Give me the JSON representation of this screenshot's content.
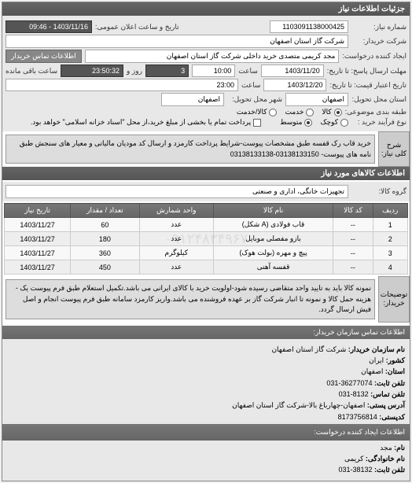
{
  "header": {
    "title": "جزئیات اطلاعات نیاز"
  },
  "form": {
    "req_no_label": "شماره نیاز:",
    "req_no": "1103091138000425",
    "ann_label": "تاریخ و ساعت اعلان عمومی:",
    "ann_date": "1403/11/16 - 09:46",
    "buyer_co_label": "شرکت خریدار:",
    "buyer_co": "شرکت گاز استان اصفهان",
    "creator_label": "ایجاد کننده درخواست:",
    "creator": "مجد کریمی متصدی خرید داخلی شرکت گاز استان اصفهان",
    "contact_btn": "اطلاعات تماس خریدار",
    "deadline_label": "مهلت ارسال پاسخ: تا تاریخ:",
    "deadline_date": "1403/11/20",
    "time_label": "ساعت",
    "deadline_time": "10:00",
    "countdown_days": "3",
    "days_label": "روز و",
    "countdown_time": "23:50:32",
    "remain_label": "ساعت باقی مانده",
    "validity_label": "تاریخ اعتبار قیمت: تا تاریخ:",
    "validity_date": "1403/12/20",
    "validity_time": "23:00",
    "delivery_prov_label": "استان محل تحویل:",
    "delivery_prov": "اصفهان",
    "delivery_city_label": "شهر محل تحویل:",
    "delivery_city": "اصفهان",
    "budget_label": "طبقه بندی موضوعی:",
    "budget_opts": {
      "goods": "کالا",
      "service": "خدمت",
      "both": "کالا/خدمت"
    },
    "budget_sel": "goods",
    "proc_label": "نوع فرآیند خرید :",
    "proc_opts": {
      "small": "کوچک",
      "medium": "متوسط"
    },
    "proc_sel": "medium",
    "pay_note_label": "پرداخت تمام یا بخشی از مبلغ خرید،از محل \"اسناد خزانه اسلامی\" خواهد بود.",
    "pay_checked": false
  },
  "desc": {
    "label": "شرح کلی نیاز:",
    "text": "خرید قاب رک قفسه طبق مشخصات پیوست-شرایط پرداخت کارمزد و ارسال کد مودیان مالیاتی و معیار های سنجش طبق نامه های پیوست- 03138133150-03138133138"
  },
  "goods_header": "اطلاعات کالاهای مورد نیاز",
  "group_label": "گروه کالا:",
  "group_val": "تجهیزات خانگی، اداری و صنعتی",
  "table": {
    "cols": [
      "ردیف",
      "کد کالا",
      "نام کالا",
      "واحد شمارش",
      "تعداد / مقدار",
      "تاریخ نیاز"
    ],
    "rows": [
      [
        "1",
        "--",
        "قاب فولادی (A شکل)",
        "عدد",
        "60",
        "1403/11/27"
      ],
      [
        "2",
        "--",
        "بازو مفصلی موبایل",
        "عدد",
        "180",
        "1403/11/27"
      ],
      [
        "3",
        "--",
        "پیچ و مهره (بولت هوک)",
        "کیلوگرم",
        "360",
        "1403/11/27"
      ],
      [
        "4",
        "--",
        "قفسه آهنی",
        "عدد",
        "450",
        "1403/11/27"
      ]
    ]
  },
  "watermark": "۰۹۱۲۴۸۳۴۹۶۷",
  "notes": {
    "label": "توضیحات خریدار:",
    "text": "نمونه کالا باید به تایید واحد متقاضی رسیده شود-اولویت خرید با کالای ایرانی می باشد.تکمیل استعلام طبق فرم پیوست یک - هزینه حمل کالا و نمونه تا انبار شرکت گاز بر عهده فروشنده می باشد.واریز کارمزد سامانه طبق فرم پیوست انجام و اصل فیش ارسال گردد."
  },
  "contact": {
    "header": "اطلاعات تماس سازمان خریدار:",
    "org_label": "نام سازمان خریدار:",
    "org": "شرکت گاز استان اصفهان",
    "country_label": "کشور:",
    "country": "ایران",
    "prov_label": "استان:",
    "prov": "اصفهان",
    "tel_label": "تلفن ثابت:",
    "tel": "36277074-031",
    "fax_label": "تلفن تماس:",
    "fax": "8132-031",
    "addr_label": "آدرس پستی:",
    "addr": "اصفهان-چهارباغ بالا-شرکت گاز استان اصفهان",
    "zip_label": "کدپستی:",
    "zip": "8173756814",
    "req_header": "اطلاعات ایجاد کننده درخواست:",
    "name_label": "نام:",
    "name": "مجد",
    "lname_label": "نام خانوادگی:",
    "lname": "کریمی",
    "rtel_label": "تلفن ثابت:",
    "rtel": "38132-031"
  }
}
